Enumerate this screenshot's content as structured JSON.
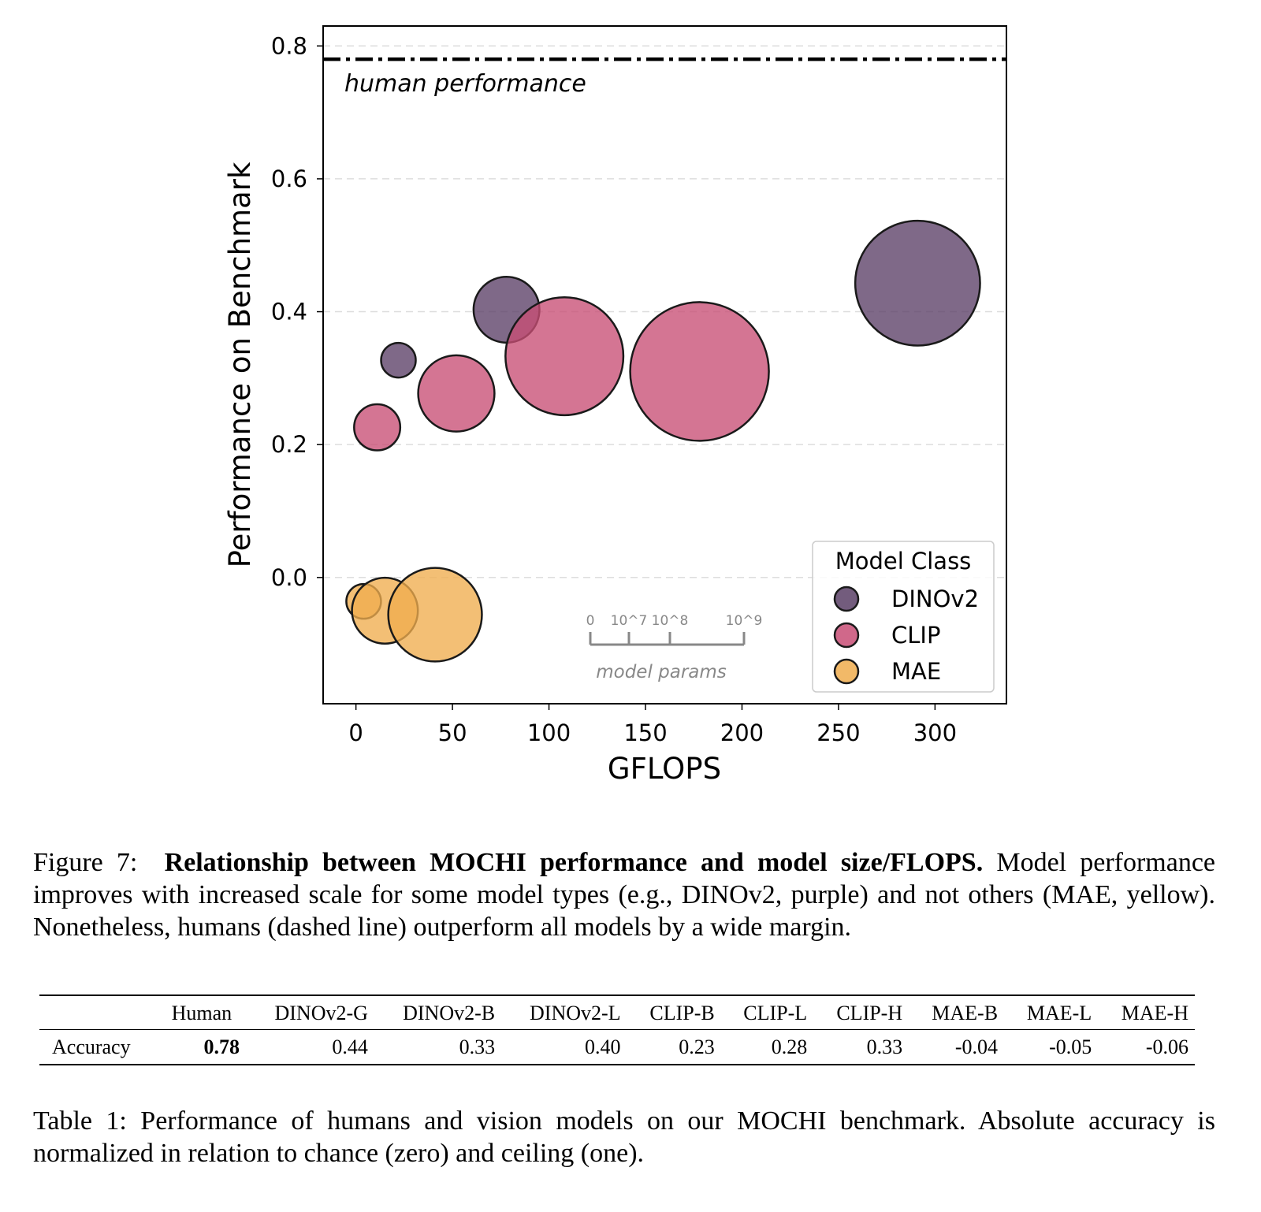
{
  "chart_data": {
    "type": "scatter",
    "subtype": "bubble",
    "xlabel": "GFLOPS",
    "ylabel": "Performance on Benchmark",
    "xlim": [
      -17,
      337
    ],
    "ylim": [
      -0.19,
      0.83
    ],
    "x_ticks": [
      0,
      50,
      100,
      150,
      200,
      250,
      300
    ],
    "x_tick_labels": [
      "0",
      "50",
      "100",
      "150",
      "200",
      "250",
      "300"
    ],
    "y_ticks": [
      0.0,
      0.2,
      0.4,
      0.6,
      0.8
    ],
    "y_tick_labels": [
      "0.0",
      "0.2",
      "0.4",
      "0.6",
      "0.8"
    ],
    "grid": "horizontal dashed",
    "reference_line": {
      "y": 0.78,
      "label": "human performance",
      "style": "dash-dot"
    },
    "legend": {
      "title": "Model Class",
      "placement": "lower-right"
    },
    "series": [
      {
        "name": "DINOv2",
        "color": "#5b3f66",
        "points": [
          {
            "x": 22,
            "y": 0.327,
            "size": 1.0
          },
          {
            "x": 78,
            "y": 0.403,
            "size": 1.9
          },
          {
            "x": 291,
            "y": 0.443,
            "size": 3.6
          }
        ]
      },
      {
        "name": "CLIP",
        "color": "#c84e75",
        "points": [
          {
            "x": 11,
            "y": 0.226,
            "size": 1.33
          },
          {
            "x": 52,
            "y": 0.277,
            "size": 2.2
          },
          {
            "x": 108,
            "y": 0.333,
            "size": 3.4
          },
          {
            "x": 178,
            "y": 0.31,
            "size": 4.0
          }
        ]
      },
      {
        "name": "MAE",
        "color": "#f0ad4e",
        "points": [
          {
            "x": 4,
            "y": -0.036,
            "size": 1.0
          },
          {
            "x": 15,
            "y": -0.05,
            "size": 1.9
          },
          {
            "x": 41,
            "y": -0.056,
            "size": 2.7
          }
        ]
      }
    ],
    "size_scale": {
      "label": "model params",
      "ticks": [
        "0",
        "10^7",
        "10^8",
        "10^9"
      ]
    }
  },
  "figure_caption": {
    "prefix": "Figure 7:",
    "title": "Relationship between MOCHI performance and model size/FLOPS.",
    "body": "Model performance improves with increased scale for some model types (e.g., DINOv2, purple) and not others (MAE, yellow). Nonetheless, humans (dashed line) outperform all models by a wide margin."
  },
  "table": {
    "columns": [
      "Human",
      "DINOv2-G",
      "DINOv2-B",
      "DINOv2-L",
      "CLIP-B",
      "CLIP-L",
      "CLIP-H",
      "MAE-B",
      "MAE-L",
      "MAE-H"
    ],
    "row_label": "Accuracy",
    "values": [
      "0.78",
      "0.44",
      "0.33",
      "0.40",
      "0.23",
      "0.28",
      "0.33",
      "-0.04",
      "-0.05",
      "-0.06"
    ]
  },
  "table_caption": "Table 1: Performance of humans and vision models on our MOCHI benchmark. Absolute accuracy is normalized in relation to chance (zero) and ceiling (one)."
}
